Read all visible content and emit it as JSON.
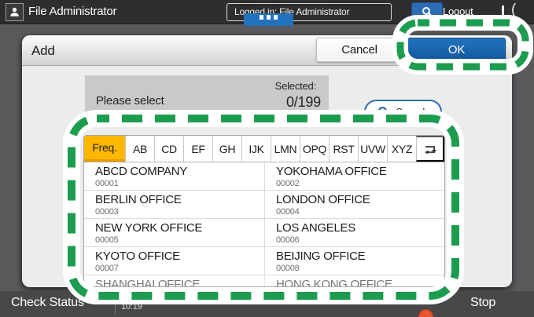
{
  "topbar": {
    "user_label": "File Administrator",
    "logged_in_label": "Logged in: File Administrator",
    "logout_label": "Logout"
  },
  "dialog": {
    "title": "Add",
    "cancel_label": "Cancel",
    "ok_label": "OK",
    "please_select": "Please select",
    "selected_label": "Selected:",
    "selected_count": "0/199",
    "search_label": "Search"
  },
  "tabs": [
    "Freq.",
    "AB",
    "CD",
    "EF",
    "GH",
    "IJK",
    "LMN",
    "OPQ",
    "RST",
    "UVW",
    "XYZ"
  ],
  "entries": [
    {
      "name": "ABCD COMPANY",
      "code": "00001"
    },
    {
      "name": "YOKOHAMA OFFICE",
      "code": "00002"
    },
    {
      "name": "BERLIN OFFICE",
      "code": "00003"
    },
    {
      "name": "LONDON OFFICE",
      "code": "00004"
    },
    {
      "name": "NEW YORK OFFICE",
      "code": "00005"
    },
    {
      "name": "LOS ANGELES",
      "code": "00006"
    },
    {
      "name": "KYOTO OFFICE",
      "code": "00007"
    },
    {
      "name": "BEIJING OFFICE",
      "code": "00008"
    },
    {
      "name": "SHANGHAI OFFICE",
      "code": ""
    },
    {
      "name": "HONG KONG OFFICE",
      "code": ""
    }
  ],
  "bottombar": {
    "check_status_label": "Check Status",
    "time": "10:19",
    "stop_label": "Stop"
  },
  "colors": {
    "accent_blue": "#2173bd",
    "tab_yellow": "#fcb700",
    "annotation_green": "#1b9c4f",
    "stop_orange": "#e8542b",
    "scrollbar_blue": "#3f6fb6"
  }
}
